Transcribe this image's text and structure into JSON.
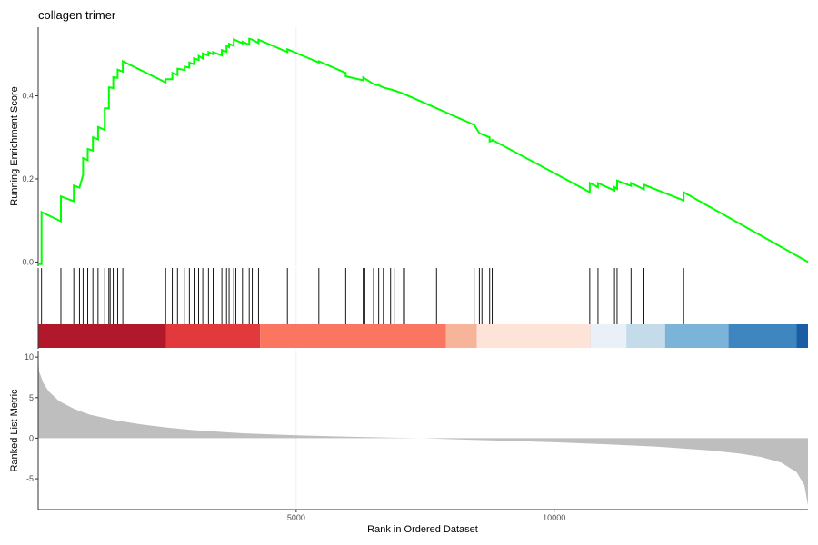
{
  "chart_data": {
    "type": "line",
    "title": "collagen trimer",
    "xlabel": "Rank in Ordered Dataset",
    "xlim": [
      0,
      14920
    ],
    "x_ticks": [
      5000,
      10000
    ],
    "x_tick_labels": [
      "5000",
      "10000"
    ],
    "running_es": {
      "ylabel": "Running Enrichment Score",
      "ylim": [
        -0.01,
        0.565
      ],
      "y_ticks": [
        0.0,
        0.2,
        0.4
      ],
      "y_tick_labels": [
        "0.0",
        "0.2",
        "0.4"
      ],
      "color": "#00FF00",
      "hits": [
        65,
        440,
        690,
        800,
        870,
        960,
        1060,
        1160,
        1290,
        1370,
        1395,
        1455,
        1540,
        1640,
        2470,
        2600,
        2700,
        2840,
        2930,
        3020,
        3110,
        3190,
        3300,
        3390,
        3560,
        3650,
        3700,
        3790,
        3830,
        3960,
        4090,
        4150,
        4270,
        4830,
        5440,
        5960,
        6300,
        6330,
        6500,
        6600,
        6690,
        6830,
        6900,
        7080,
        7100,
        7720,
        8450,
        8550,
        8600,
        8750,
        8800,
        10690,
        10850,
        11170,
        11220,
        11490,
        11740,
        12510
      ],
      "points": [
        [
          0,
          -0.005
        ],
        [
          65,
          -0.005
        ],
        [
          65,
          0.12
        ],
        [
          440,
          0.098
        ],
        [
          440,
          0.158
        ],
        [
          690,
          0.146
        ],
        [
          690,
          0.184
        ],
        [
          800,
          0.179
        ],
        [
          870,
          0.21
        ],
        [
          870,
          0.215
        ],
        [
          870,
          0.25
        ],
        [
          960,
          0.245
        ],
        [
          960,
          0.272
        ],
        [
          1060,
          0.268
        ],
        [
          1060,
          0.3
        ],
        [
          1160,
          0.295
        ],
        [
          1160,
          0.325
        ],
        [
          1290,
          0.318
        ],
        [
          1290,
          0.37
        ],
        [
          1370,
          0.37
        ],
        [
          1370,
          0.42
        ],
        [
          1395,
          0.42
        ],
        [
          1455,
          0.418
        ],
        [
          1455,
          0.445
        ],
        [
          1540,
          0.443
        ],
        [
          1540,
          0.463
        ],
        [
          1640,
          0.458
        ],
        [
          1640,
          0.483
        ],
        [
          2470,
          0.432
        ],
        [
          2470,
          0.44
        ],
        [
          2600,
          0.44
        ],
        [
          2600,
          0.455
        ],
        [
          2700,
          0.45
        ],
        [
          2700,
          0.465
        ],
        [
          2840,
          0.462
        ],
        [
          2840,
          0.47
        ],
        [
          2930,
          0.468
        ],
        [
          2930,
          0.48
        ],
        [
          3020,
          0.476
        ],
        [
          3020,
          0.49
        ],
        [
          3110,
          0.486
        ],
        [
          3110,
          0.496
        ],
        [
          3190,
          0.49
        ],
        [
          3190,
          0.502
        ],
        [
          3300,
          0.497
        ],
        [
          3300,
          0.505
        ],
        [
          3390,
          0.5
        ],
        [
          3390,
          0.505
        ],
        [
          3560,
          0.497
        ],
        [
          3560,
          0.51
        ],
        [
          3650,
          0.506
        ],
        [
          3650,
          0.52
        ],
        [
          3700,
          0.517
        ],
        [
          3700,
          0.525
        ],
        [
          3790,
          0.52
        ],
        [
          3790,
          0.536
        ],
        [
          3960,
          0.526
        ],
        [
          3960,
          0.53
        ],
        [
          4090,
          0.523
        ],
        [
          4090,
          0.537
        ],
        [
          4150,
          0.535
        ],
        [
          4270,
          0.527
        ],
        [
          4270,
          0.535
        ],
        [
          4830,
          0.505
        ],
        [
          4830,
          0.512
        ],
        [
          5440,
          0.48
        ],
        [
          5440,
          0.483
        ],
        [
          5960,
          0.455
        ],
        [
          5960,
          0.447
        ],
        [
          6300,
          0.437
        ],
        [
          6300,
          0.444
        ],
        [
          6500,
          0.428
        ],
        [
          6600,
          0.425
        ],
        [
          6690,
          0.42
        ],
        [
          6900,
          0.413
        ],
        [
          7080,
          0.405
        ],
        [
          7720,
          0.37
        ],
        [
          8450,
          0.33
        ],
        [
          8550,
          0.31
        ],
        [
          8750,
          0.3
        ],
        [
          8750,
          0.29
        ],
        [
          8800,
          0.292
        ],
        [
          8800,
          0.294
        ],
        [
          10690,
          0.168
        ],
        [
          10690,
          0.19
        ],
        [
          10850,
          0.18
        ],
        [
          10850,
          0.19
        ],
        [
          11170,
          0.172
        ],
        [
          11170,
          0.18
        ],
        [
          11220,
          0.176
        ],
        [
          11220,
          0.196
        ],
        [
          11490,
          0.183
        ],
        [
          11490,
          0.19
        ],
        [
          11740,
          0.175
        ],
        [
          11740,
          0.186
        ],
        [
          12510,
          0.148
        ],
        [
          12510,
          0.168
        ],
        [
          14920,
          0.0
        ]
      ]
    },
    "ranked_list": {
      "ylabel": "Ranked List Metric",
      "ylim": [
        -8.8,
        10.8
      ],
      "y_ticks": [
        -5,
        0,
        5,
        10
      ],
      "y_tick_labels": [
        "-5",
        "0",
        "5",
        "10"
      ],
      "fill_color": "#BEBEBE",
      "points": [
        [
          0,
          10.0
        ],
        [
          20,
          8.2
        ],
        [
          100,
          6.8
        ],
        [
          200,
          5.8
        ],
        [
          400,
          4.6
        ],
        [
          700,
          3.6
        ],
        [
          1000,
          2.9
        ],
        [
          1500,
          2.2
        ],
        [
          2000,
          1.7
        ],
        [
          2500,
          1.3
        ],
        [
          3000,
          1.0
        ],
        [
          4000,
          0.6
        ],
        [
          5000,
          0.35
        ],
        [
          6000,
          0.18
        ],
        [
          7000,
          0.05
        ],
        [
          7450,
          0.0
        ],
        [
          8000,
          -0.12
        ],
        [
          9000,
          -0.3
        ],
        [
          10000,
          -0.5
        ],
        [
          11000,
          -0.75
        ],
        [
          12000,
          -1.05
        ],
        [
          13000,
          -1.5
        ],
        [
          13600,
          -1.9
        ],
        [
          14000,
          -2.3
        ],
        [
          14400,
          -3.0
        ],
        [
          14700,
          -4.2
        ],
        [
          14850,
          -5.8
        ],
        [
          14920,
          -8.3
        ]
      ]
    },
    "color_bar": {
      "segments": [
        [
          0,
          2470,
          "#B2182B"
        ],
        [
          2470,
          4300,
          "#E23A3C"
        ],
        [
          4300,
          7900,
          "#FA7660"
        ],
        [
          7900,
          8500,
          "#F6B59A"
        ],
        [
          8500,
          10700,
          "#FDE3D8"
        ],
        [
          10700,
          11400,
          "#EAF0F8"
        ],
        [
          11400,
          12150,
          "#C4DCE9"
        ],
        [
          12150,
          13380,
          "#7BB4D8"
        ],
        [
          13380,
          14700,
          "#3E86C0"
        ],
        [
          14700,
          14920,
          "#1B5EA3"
        ]
      ]
    }
  }
}
